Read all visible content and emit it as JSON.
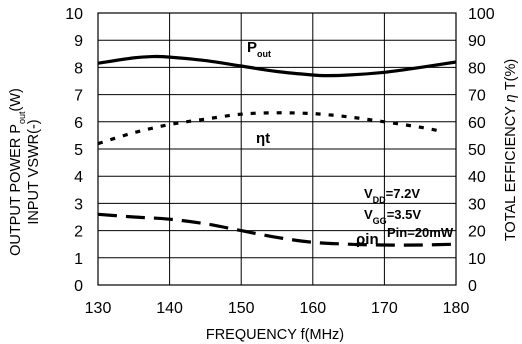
{
  "chart_data": {
    "type": "line",
    "xlabel": "FREQUENCY f(MHz)",
    "ylabel_left_line1": "OUTPUT POWER Pout(W)",
    "ylabel_left_line2": "INPUT VSWR(-)",
    "ylabel_right": "TOTAL EFFICIENCY η T(%)",
    "xlim": [
      130,
      180
    ],
    "ylim_left": [
      0,
      10
    ],
    "ylim_right": [
      0,
      100
    ],
    "x_ticks": [
      130,
      140,
      150,
      160,
      170,
      180
    ],
    "y_left_ticks": [
      0,
      1,
      2,
      3,
      4,
      5,
      6,
      7,
      8,
      9,
      10
    ],
    "y_right_ticks": [
      0,
      10,
      20,
      30,
      40,
      50,
      60,
      70,
      80,
      90,
      100
    ],
    "grid": true,
    "series": [
      {
        "name": "Pout",
        "axis": "left",
        "style": "solid",
        "x": [
          130,
          135,
          138,
          140,
          145,
          150,
          155,
          160,
          162,
          165,
          170,
          175,
          180
        ],
        "y": [
          8.15,
          8.35,
          8.4,
          8.38,
          8.25,
          8.05,
          7.85,
          7.72,
          7.7,
          7.72,
          7.82,
          8.0,
          8.2
        ]
      },
      {
        "name": "ηt",
        "axis": "right",
        "style": "dotted",
        "x": [
          130,
          135,
          140,
          145,
          150,
          155,
          160,
          165,
          170,
          175,
          178
        ],
        "y": [
          52,
          56,
          59,
          61,
          62.8,
          63.3,
          63,
          61.8,
          60,
          58,
          56.5
        ]
      },
      {
        "name": "ρin",
        "axis": "left",
        "style": "dashed",
        "x": [
          130,
          135,
          140,
          145,
          150,
          155,
          160,
          165,
          170,
          175,
          180
        ],
        "y": [
          2.6,
          2.5,
          2.42,
          2.25,
          2.0,
          1.75,
          1.57,
          1.5,
          1.47,
          1.47,
          1.5
        ]
      }
    ],
    "annotations": [
      "VDD=7.2V",
      "VGG=3.5V",
      "Pin=20mW"
    ]
  }
}
